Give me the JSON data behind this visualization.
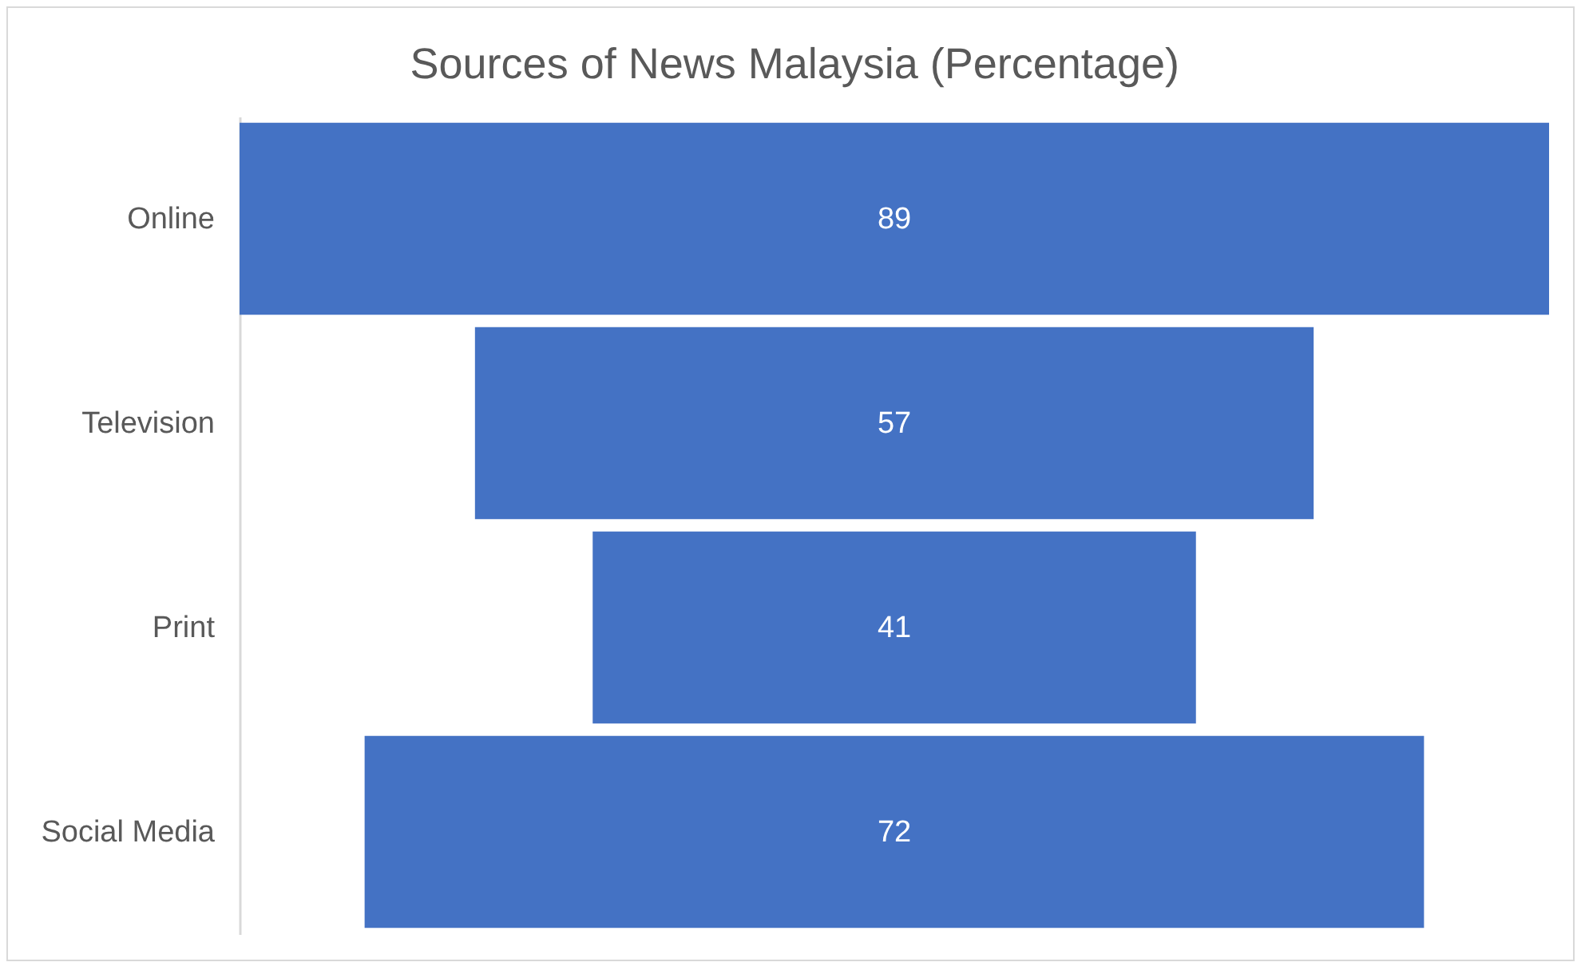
{
  "chart_data": {
    "type": "other",
    "title": "Sources of News Malaysia (Percentage)",
    "categories": [
      "Online",
      "Television",
      "Print",
      "Social Media"
    ],
    "values": [
      89,
      57,
      41,
      72
    ],
    "color": "#4472c4",
    "data_labels": true
  }
}
